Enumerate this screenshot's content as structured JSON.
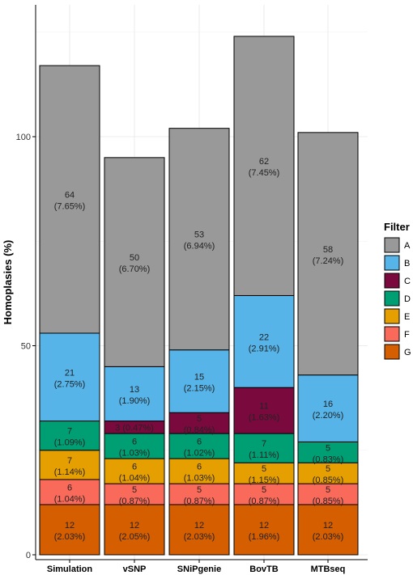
{
  "chart_data": {
    "type": "bar",
    "stacked": true,
    "ylabel": "Homoplasies (%)",
    "ylim": [
      0,
      128
    ],
    "yticks": [
      0,
      50,
      100
    ],
    "grid": true,
    "legend_position": "right",
    "categories": [
      "Simulation",
      "vSNP",
      "SNiPgenie",
      "BovTB",
      "MTBseq"
    ],
    "legend": {
      "title": "Filter",
      "entries": [
        "A",
        "B",
        "C",
        "D",
        "E",
        "F",
        "G"
      ]
    },
    "series": [
      {
        "name": "G",
        "color": "#d55e00",
        "values": [
          12,
          12,
          12,
          12,
          12
        ],
        "labels": [
          "(2.03%)",
          "(2.05%)",
          "(2.03%)",
          "(1.96%)",
          "(2.03%)"
        ]
      },
      {
        "name": "F",
        "color": "#fa6a5a",
        "values": [
          6,
          5,
          5,
          5,
          5
        ],
        "labels": [
          "(1.04%)",
          "(0.87%)",
          "(0.87%)",
          "(0.87%)",
          "(0.85%)"
        ]
      },
      {
        "name": "E",
        "color": "#e69f00",
        "values": [
          7,
          6,
          6,
          5,
          5
        ],
        "labels": [
          "(1.14%)",
          "(1.04%)",
          "(1.03%)",
          "(1.15%)",
          "(0.85%)"
        ]
      },
      {
        "name": "D",
        "color": "#009e73",
        "values": [
          7,
          6,
          6,
          7,
          5
        ],
        "labels": [
          "(1.09%)",
          "(1.03%)",
          "(1.02%)",
          "(1.11%)",
          "(0.83%)"
        ]
      },
      {
        "name": "C",
        "color": "#7a0a3e",
        "values": [
          0,
          3,
          5,
          11,
          0
        ],
        "labels": [
          "",
          "(0.47%)",
          "(0.84%)",
          "(1.63%)",
          ""
        ]
      },
      {
        "name": "B",
        "color": "#56b4e9",
        "values": [
          21,
          13,
          15,
          22,
          16
        ],
        "labels": [
          "(2.75%)",
          "(1.90%)",
          "(2.15%)",
          "(2.91%)",
          "(2.20%)"
        ]
      },
      {
        "name": "A",
        "color": "#999999",
        "values": [
          64,
          50,
          53,
          62,
          58
        ],
        "labels": [
          "(7.65%)",
          "(6.70%)",
          "(6.94%)",
          "(7.45%)",
          "(7.24%)"
        ]
      }
    ]
  }
}
